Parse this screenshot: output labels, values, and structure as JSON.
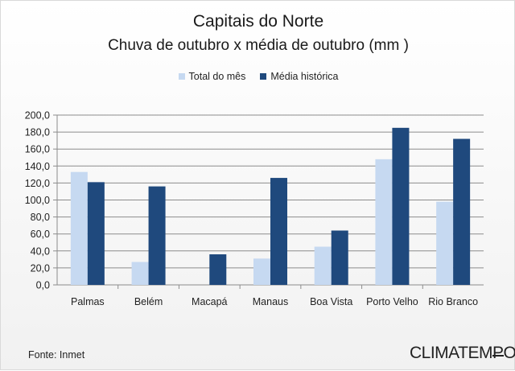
{
  "chart_data": {
    "type": "bar",
    "title": "Capitais do Norte",
    "subtitle": "Chuva de outubro x média de outubro (mm )",
    "categories": [
      "Palmas",
      "Belém",
      "Macapá",
      "Manaus",
      "Boa Vista",
      "Porto Velho",
      "Rio Branco"
    ],
    "series": [
      {
        "name": "Total do mês",
        "values": [
          133,
          27,
          0,
          31,
          45,
          148,
          98
        ],
        "color": "#c6d9f1"
      },
      {
        "name": "Média histórica",
        "values": [
          121,
          116,
          36,
          126,
          64,
          185,
          172
        ],
        "color": "#1f497d"
      }
    ],
    "yticks": [
      "0,0",
      "20,0",
      "40,0",
      "60,0",
      "80,0",
      "100,0",
      "120,0",
      "140,0",
      "160,0",
      "180,0",
      "200,0"
    ],
    "ylim": [
      0,
      200
    ],
    "grid": true,
    "legend_position": "top"
  },
  "footer": {
    "source": "Fonte: Inmet",
    "brand": "CLIMATEMPO"
  }
}
